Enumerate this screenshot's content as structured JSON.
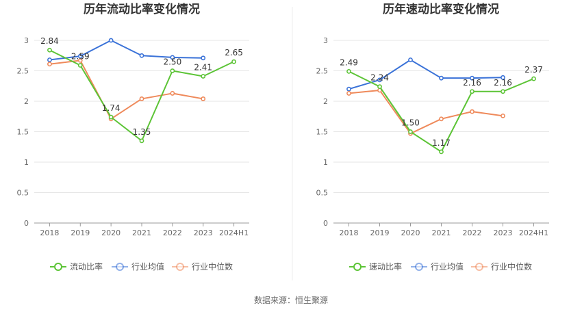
{
  "source_note": "数据来源：恒生聚源",
  "chart_data": [
    {
      "type": "line",
      "title": "历年流动比率变化情况",
      "categories": [
        "2018",
        "2019",
        "2020",
        "2021",
        "2022",
        "2023",
        "2024H1"
      ],
      "ylim": [
        0,
        3
      ],
      "yticks": [
        "0",
        "0.5",
        "1",
        "1.5",
        "2",
        "2.5",
        "3"
      ],
      "grid": true,
      "legend_position": "bottom",
      "series": [
        {
          "name": "流动比率",
          "color": "#5cc436",
          "values": [
            2.84,
            2.59,
            1.74,
            1.35,
            2.5,
            2.41,
            2.65
          ],
          "labels": [
            "2.84",
            "2.59",
            "1.74",
            "1.35",
            "2.50",
            "2.41",
            "2.65"
          ]
        },
        {
          "name": "行业均值",
          "color": "#3a72d8",
          "values": [
            2.68,
            2.74,
            3.0,
            2.75,
            2.72,
            2.71,
            null
          ]
        },
        {
          "name": "行业中位数",
          "color": "#ef8a5b",
          "values": [
            2.61,
            2.67,
            1.71,
            2.04,
            2.13,
            2.04,
            null
          ]
        }
      ]
    },
    {
      "type": "line",
      "title": "历年速动比率变化情况",
      "categories": [
        "2018",
        "2019",
        "2020",
        "2021",
        "2022",
        "2023",
        "2024H1"
      ],
      "ylim": [
        0,
        3
      ],
      "yticks": [
        "0",
        "0.5",
        "1",
        "1.5",
        "2",
        "2.5",
        "3"
      ],
      "grid": true,
      "legend_position": "bottom",
      "series": [
        {
          "name": "速动比率",
          "color": "#5cc436",
          "values": [
            2.49,
            2.24,
            1.5,
            1.17,
            2.16,
            2.16,
            2.37
          ],
          "labels": [
            "2.49",
            "2.24",
            "1.50",
            "1.17",
            "2.16",
            "2.16",
            "2.37"
          ]
        },
        {
          "name": "行业均值",
          "color": "#3a72d8",
          "values": [
            2.2,
            2.35,
            2.68,
            2.38,
            2.38,
            2.39,
            null
          ]
        },
        {
          "name": "行业中位数",
          "color": "#ef8a5b",
          "values": [
            2.13,
            2.18,
            1.47,
            1.71,
            1.83,
            1.76,
            null
          ]
        }
      ]
    }
  ]
}
